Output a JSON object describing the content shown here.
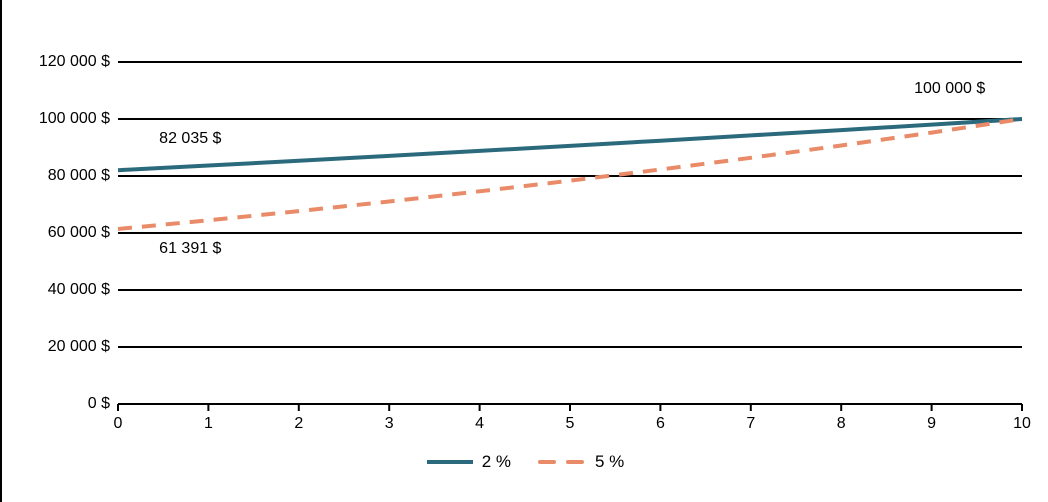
{
  "chart_data": {
    "type": "line",
    "title": "",
    "xlabel": "",
    "ylabel": "",
    "x": [
      0,
      1,
      2,
      3,
      4,
      5,
      6,
      7,
      8,
      9,
      10
    ],
    "x_tick_labels": [
      "0",
      "1",
      "2",
      "3",
      "4",
      "5",
      "6",
      "7",
      "8",
      "9",
      "10"
    ],
    "y_tick_labels": [
      "0 $",
      "20 000 $",
      "40 000 $",
      "60 000 $",
      "80 000 $",
      "100 000 $",
      "120 000 $"
    ],
    "y_tick_values": [
      0,
      20000,
      40000,
      60000,
      80000,
      100000,
      120000
    ],
    "xlim": [
      0,
      10
    ],
    "ylim": [
      0,
      130000
    ],
    "grid": "horizontal",
    "legend_position": "bottom",
    "series": [
      {
        "name": "2 %",
        "color": "#2B6A7D",
        "line_style": "solid",
        "values": [
          82035,
          83676,
          85349,
          87056,
          88797,
          90573,
          92385,
          94232,
          96117,
          98039,
          100000
        ]
      },
      {
        "name": "5 %",
        "color": "#E98B68",
        "line_style": "dashed",
        "values": [
          61391,
          64461,
          67684,
          71068,
          74621,
          78353,
          82270,
          86384,
          90703,
          95238,
          100000
        ]
      }
    ],
    "annotations": [
      {
        "text": "82 035 $",
        "anchor_x": 0.8,
        "anchor_value": 93000
      },
      {
        "text": "61 391 $",
        "anchor_x": 0.8,
        "anchor_value": 54400
      },
      {
        "text": "100 000 $",
        "anchor_x": 9.2,
        "anchor_value": 110500
      }
    ]
  },
  "styles": {
    "grid_color": "#000000",
    "axis_color": "#000000",
    "text_color": "#000000",
    "background": "#ffffff",
    "left_border_color": "#000000"
  }
}
